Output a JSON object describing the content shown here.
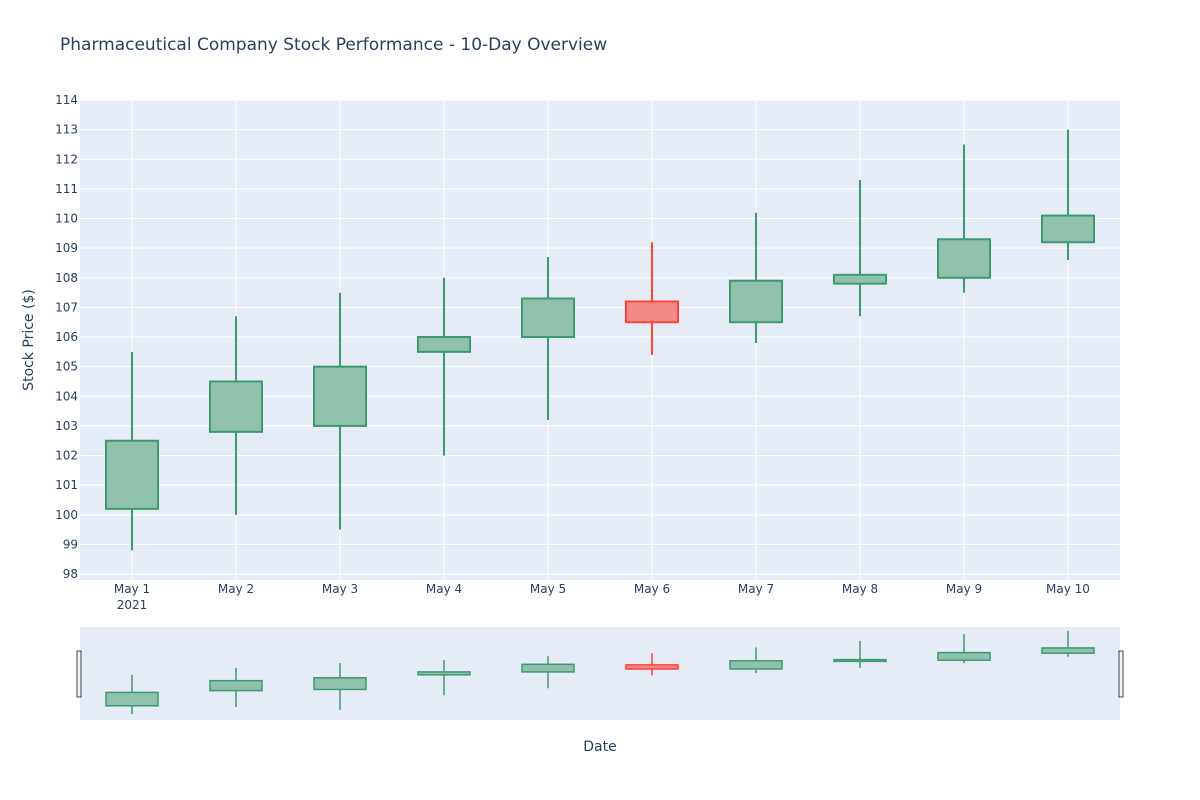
{
  "chart_data": {
    "type": "candlestick",
    "title": "Pharmaceutical Company Stock Performance - 10-Day Overview",
    "xlabel": "Date",
    "ylabel": "Stock Price ($)",
    "ylim": [
      97.8,
      114
    ],
    "y_ticks": [
      98,
      99,
      100,
      101,
      102,
      103,
      104,
      105,
      106,
      107,
      108,
      109,
      110,
      111,
      112,
      113,
      114
    ],
    "categories": [
      "May 1",
      "May 2",
      "May 3",
      "May 4",
      "May 5",
      "May 6",
      "May 7",
      "May 8",
      "May 9",
      "May 10"
    ],
    "x_sublabel": "2021",
    "series": [
      {
        "open": [
          100.2,
          102.8,
          103.0,
          105.5,
          106.0,
          107.2,
          106.5,
          107.8,
          108.0,
          109.2
        ],
        "high": [
          105.5,
          106.7,
          107.5,
          108.0,
          108.7,
          109.2,
          110.2,
          111.3,
          112.5,
          113.0
        ],
        "low": [
          98.8,
          100.0,
          99.5,
          102.0,
          103.2,
          105.4,
          105.8,
          106.7,
          107.5,
          108.6
        ],
        "close": [
          102.5,
          104.5,
          105.0,
          106.0,
          107.3,
          106.5,
          107.9,
          108.1,
          109.3,
          110.1
        ]
      }
    ],
    "grid": true,
    "rangeslider": true,
    "colors": {
      "increasing_line": "#3d9970",
      "increasing_fill": "#8fc1ad",
      "decreasing_line": "#ff4136",
      "decreasing_fill": "#f28b86",
      "plot_bg": "#e5ecf6",
      "grid": "#ffffff",
      "text": "#2a3f5f"
    }
  }
}
